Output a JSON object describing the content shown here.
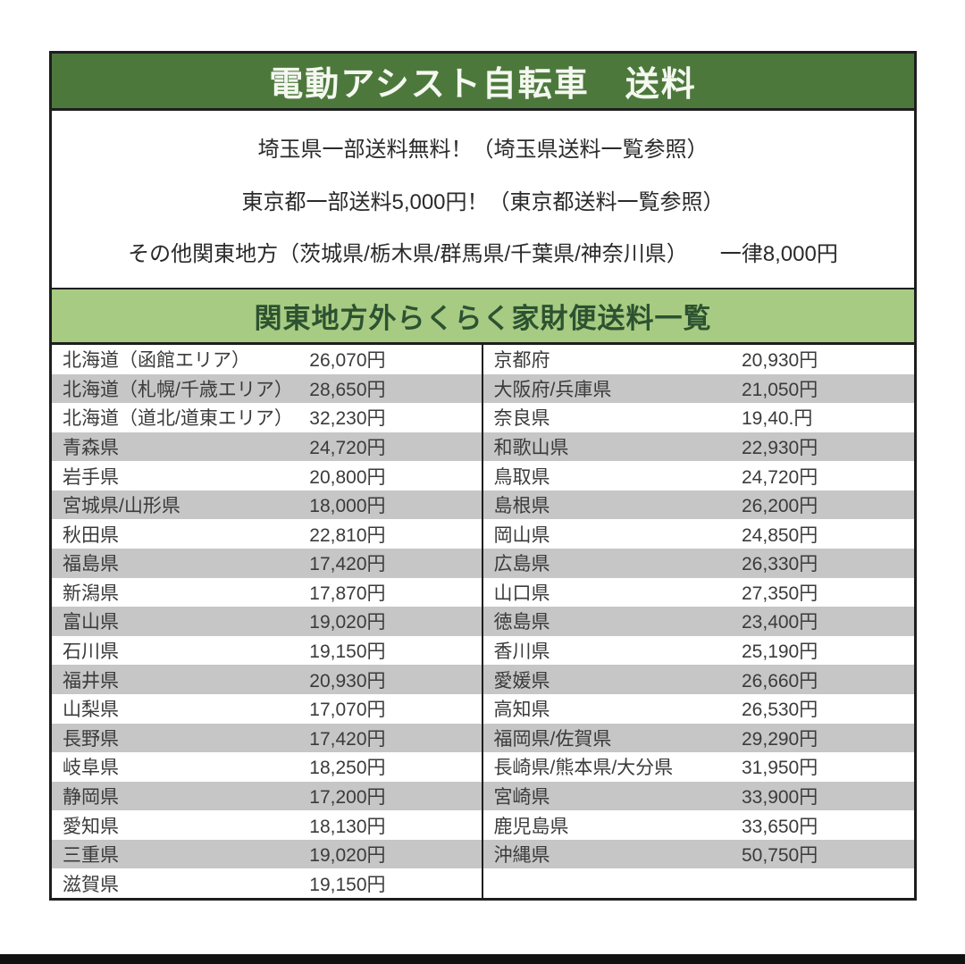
{
  "header": {
    "title": "電動アシスト自転車　送料",
    "bg_color": "#4d783c",
    "text_color": "#f4f8f0"
  },
  "notices": [
    "埼玉県一部送料無料！（埼玉県送料一覧参照）",
    "東京都一部送料5,000円！（東京都送料一覧参照）",
    "その他関東地方（茨城県/栃木県/群馬県/千葉県/神奈川県）　　一律8,000円"
  ],
  "subheader": {
    "title": "関東地方外らくらく家財便送料一覧",
    "bg_color": "#a7cb82",
    "text_color": "#2d5231"
  },
  "table": {
    "row_alt_color": "#c6c6c6",
    "left_rows": [
      {
        "name": "北海道（函館エリア）",
        "price": "26,070円"
      },
      {
        "name": "北海道（札幌/千歳エリア）",
        "price": "28,650円"
      },
      {
        "name": "北海道（道北/道東エリア）",
        "price": "32,230円"
      },
      {
        "name": "青森県",
        "price": "24,720円"
      },
      {
        "name": "岩手県",
        "price": "20,800円"
      },
      {
        "name": "宮城県/山形県",
        "price": "18,000円"
      },
      {
        "name": "秋田県",
        "price": "22,810円"
      },
      {
        "name": "福島県",
        "price": "17,420円"
      },
      {
        "name": "新潟県",
        "price": "17,870円"
      },
      {
        "name": "富山県",
        "price": "19,020円"
      },
      {
        "name": "石川県",
        "price": "19,150円"
      },
      {
        "name": "福井県",
        "price": "20,930円"
      },
      {
        "name": "山梨県",
        "price": "17,070円"
      },
      {
        "name": "長野県",
        "price": "17,420円"
      },
      {
        "name": "岐阜県",
        "price": "18,250円"
      },
      {
        "name": "静岡県",
        "price": "17,200円"
      },
      {
        "name": "愛知県",
        "price": "18,130円"
      },
      {
        "name": "三重県",
        "price": "19,020円"
      },
      {
        "name": "滋賀県",
        "price": "19,150円"
      }
    ],
    "right_rows": [
      {
        "name": "京都府",
        "price": "20,930円"
      },
      {
        "name": "大阪府/兵庫県",
        "price": "21,050円"
      },
      {
        "name": "奈良県",
        "price": "19,40.円"
      },
      {
        "name": "和歌山県",
        "price": "22,930円"
      },
      {
        "name": "鳥取県",
        "price": "24,720円"
      },
      {
        "name": "島根県",
        "price": "26,200円"
      },
      {
        "name": "岡山県",
        "price": "24,850円"
      },
      {
        "name": "広島県",
        "price": "26,330円"
      },
      {
        "name": "山口県",
        "price": "27,350円"
      },
      {
        "name": "徳島県",
        "price": "23,400円"
      },
      {
        "name": "香川県",
        "price": "25,190円"
      },
      {
        "name": "愛媛県",
        "price": "26,660円"
      },
      {
        "name": "高知県",
        "price": "26,530円"
      },
      {
        "name": "福岡県/佐賀県",
        "price": "29,290円"
      },
      {
        "name": "長崎県/熊本県/大分県",
        "price": "31,950円"
      },
      {
        "name": "宮崎県",
        "price": "33,900円"
      },
      {
        "name": "鹿児島県",
        "price": "33,650円"
      },
      {
        "name": "沖縄県",
        "price": "50,750円"
      },
      {
        "name": "",
        "price": ""
      }
    ]
  },
  "page": {
    "bottom_bar_color": "#111111"
  }
}
